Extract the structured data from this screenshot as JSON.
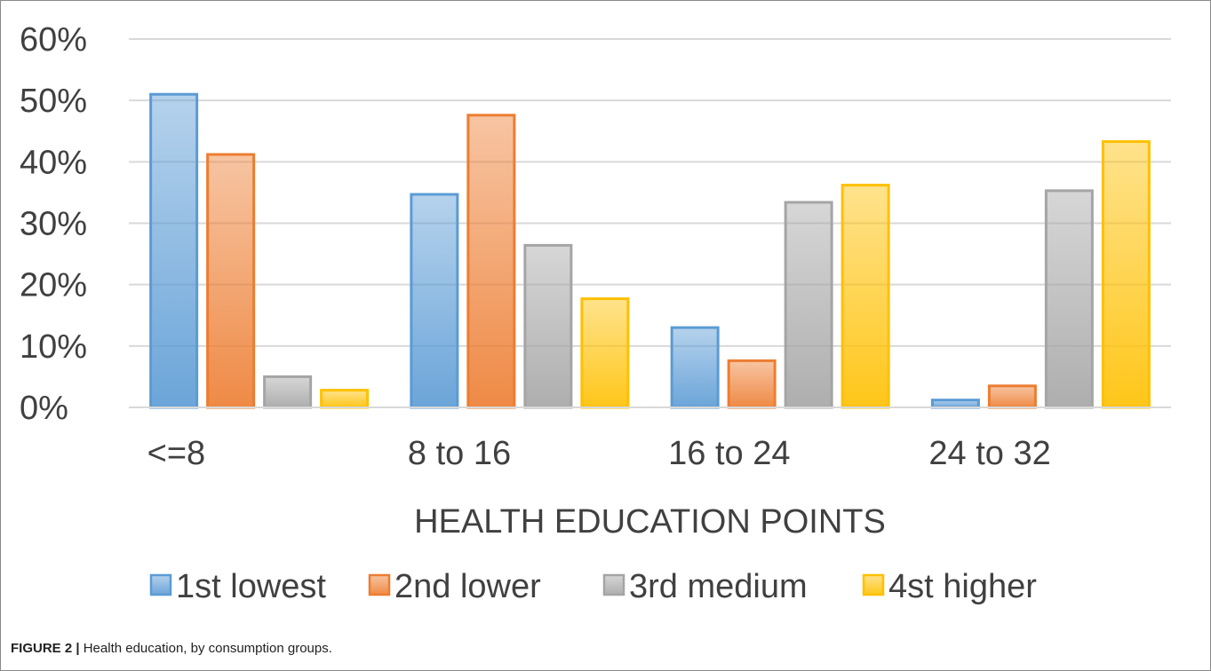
{
  "caption": {
    "label": "FIGURE 2 |",
    "text": " Health education, by consumption groups."
  },
  "chart_data": {
    "type": "bar",
    "title": "",
    "xlabel": "HEALTH EDUCATION POINTS",
    "ylabel": "",
    "ylim": [
      0,
      60
    ],
    "yticks": [
      "0%",
      "10%",
      "20%",
      "30%",
      "40%",
      "50%",
      "60%"
    ],
    "grid": true,
    "legend_position": "bottom",
    "categories": [
      "<=8",
      "8 to 16",
      "16 to 24",
      "24 to 32"
    ],
    "series": [
      {
        "name": "1st lowest",
        "values": [
          51,
          34.7,
          13,
          1.2
        ],
        "color": "#5b9bd5"
      },
      {
        "name": "2nd lower",
        "values": [
          41.2,
          47.6,
          7.6,
          3.5
        ],
        "color": "#ed7d31"
      },
      {
        "name": "3rd medium",
        "values": [
          5,
          26.4,
          33.4,
          35.3
        ],
        "color": "#a5a5a5"
      },
      {
        "name": "4st higher",
        "values": [
          2.8,
          17.7,
          36.2,
          43.3
        ],
        "color": "#ffc000"
      }
    ]
  }
}
